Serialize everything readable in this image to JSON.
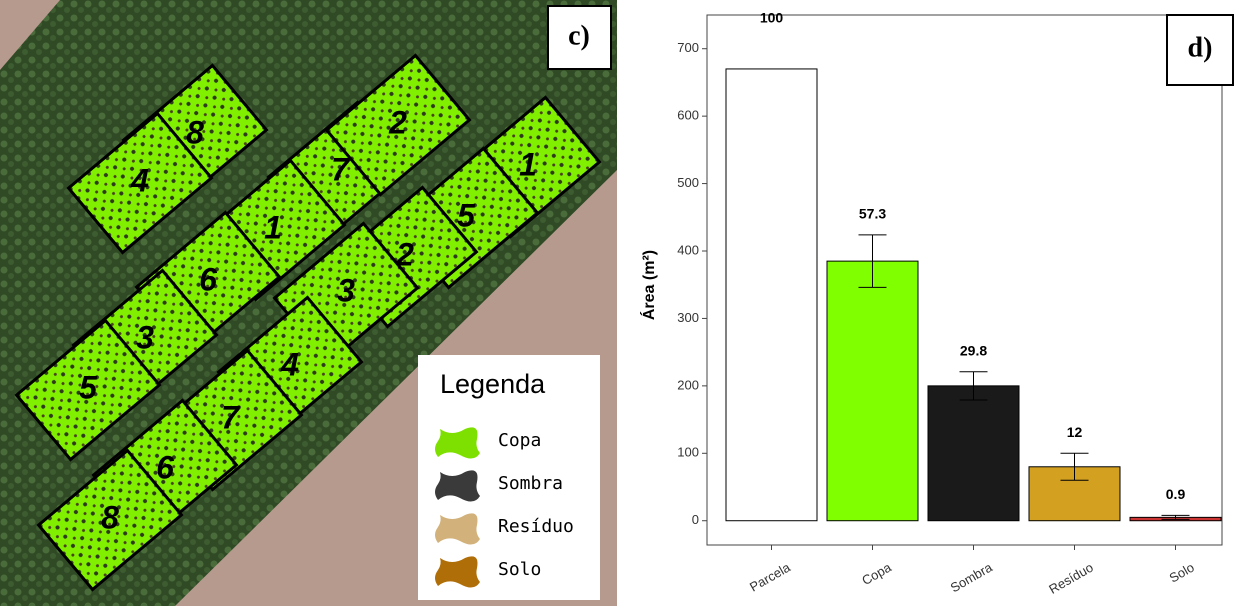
{
  "map": {
    "panel_label": "c)",
    "plots": [
      "8",
      "4",
      "7",
      "2",
      "1",
      "5",
      "1",
      "2",
      "6",
      "3",
      "3",
      "4",
      "5",
      "7",
      "6",
      "8"
    ],
    "legend": {
      "title": "Legenda",
      "items": [
        {
          "label": "Copa",
          "color": "#7ee000"
        },
        {
          "label": "Sombra",
          "color": "#3a3a3a"
        },
        {
          "label": "Resíduo",
          "color": "#d2b27a"
        },
        {
          "label": "Solo",
          "color": "#b06e08"
        }
      ]
    }
  },
  "chart_data": {
    "type": "bar",
    "panel_label": "d)",
    "y_label": "Área (m²)",
    "categories": [
      "Parcela",
      "Copa",
      "Sombra",
      "Resíduo",
      "Solo"
    ],
    "values": [
      670,
      385,
      200,
      80,
      5
    ],
    "errors": [
      null,
      39,
      21,
      20,
      3
    ],
    "percentages": [
      100,
      57.3,
      29.8,
      12,
      0.9
    ],
    "colors": [
      "#ffffff",
      "#80ff00",
      "#1a1a1a",
      "#d4a020",
      "#cc3333"
    ],
    "ylim": [
      -36,
      750
    ],
    "yticks": [
      0,
      100,
      200,
      300,
      400,
      500,
      600,
      700
    ]
  }
}
